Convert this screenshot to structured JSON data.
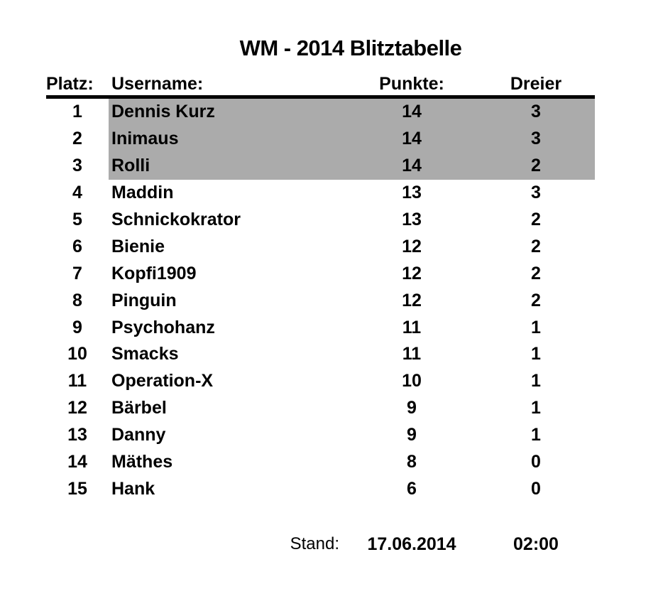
{
  "title": "WM - 2014 Blitztabelle",
  "table": {
    "headers": {
      "platz": "Platz:",
      "username": "Username:",
      "punkte": "Punkte:",
      "dreier": "Dreier"
    },
    "rows": [
      {
        "platz": "1",
        "username": "Dennis Kurz",
        "punkte": "14",
        "dreier": "3",
        "highlight": true
      },
      {
        "platz": "2",
        "username": "Inimaus",
        "punkte": "14",
        "dreier": "3",
        "highlight": true
      },
      {
        "platz": "3",
        "username": "Rolli",
        "punkte": "14",
        "dreier": "2",
        "highlight": true
      },
      {
        "platz": "4",
        "username": "Maddin",
        "punkte": "13",
        "dreier": "3",
        "highlight": false
      },
      {
        "platz": "5",
        "username": "Schnickokrator",
        "punkte": "13",
        "dreier": "2",
        "highlight": false
      },
      {
        "platz": "6",
        "username": "Bienie",
        "punkte": "12",
        "dreier": "2",
        "highlight": false
      },
      {
        "platz": "7",
        "username": "Kopfi1909",
        "punkte": "12",
        "dreier": "2",
        "highlight": false
      },
      {
        "platz": "8",
        "username": "Pinguin",
        "punkte": "12",
        "dreier": "2",
        "highlight": false
      },
      {
        "platz": "9",
        "username": "Psychohanz",
        "punkte": "11",
        "dreier": "1",
        "highlight": false
      },
      {
        "platz": "10",
        "username": "Smacks",
        "punkte": "11",
        "dreier": "1",
        "highlight": false
      },
      {
        "platz": "11",
        "username": "Operation-X",
        "punkte": "10",
        "dreier": "1",
        "highlight": false
      },
      {
        "platz": "12",
        "username": "Bärbel",
        "punkte": "9",
        "dreier": "1",
        "highlight": false
      },
      {
        "platz": "13",
        "username": "Danny",
        "punkte": "9",
        "dreier": "1",
        "highlight": false
      },
      {
        "platz": "14",
        "username": "Mäthes",
        "punkte": "8",
        "dreier": "0",
        "highlight": false
      },
      {
        "platz": "15",
        "username": "Hank",
        "punkte": "6",
        "dreier": "0",
        "highlight": false
      }
    ]
  },
  "footer": {
    "stand_label": "Stand:",
    "date": "17.06.2014",
    "time": "02:00"
  },
  "colors": {
    "highlight_row_background": "#ababab",
    "text": "#000000",
    "header_rule": "#000000"
  }
}
